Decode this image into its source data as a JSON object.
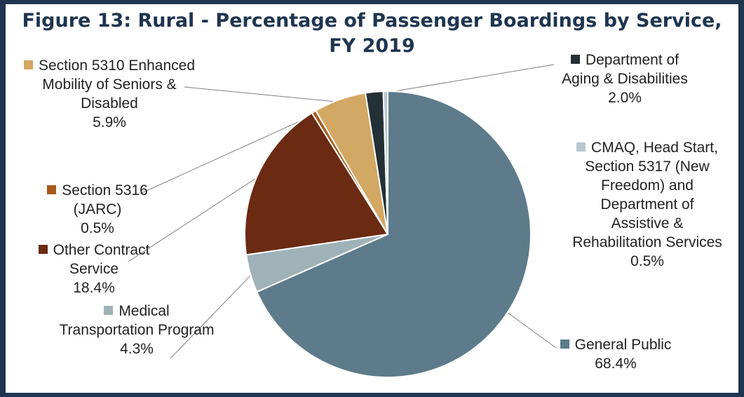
{
  "chart_data": {
    "type": "pie",
    "title": "Figure 13: Rural - Percentage of Passenger Boardings by Service, FY 2019",
    "start_angle_deg": 90,
    "direction": "clockwise",
    "slices": [
      {
        "label": "General Public",
        "value": 68.4,
        "value_label": "68.4%",
        "color": "#5d7b8a"
      },
      {
        "label": "Medical Transportation Program",
        "value": 4.3,
        "value_label": "4.3%",
        "color": "#9fb2b8"
      },
      {
        "label": "Other Contract Service",
        "value": 18.4,
        "value_label": "18.4%",
        "color": "#6b2a12"
      },
      {
        "label": "Section 5316 (JARC)",
        "value": 0.5,
        "value_label": "0.5%",
        "color": "#a75a1c"
      },
      {
        "label": "Section 5310 Enhanced Mobility of Seniors & Disabled",
        "value": 5.9,
        "value_label": "5.9%",
        "color": "#d3a764"
      },
      {
        "label": "Department of Aging & Disabilities",
        "value": 2.0,
        "value_label": "2.0%",
        "color": "#233036"
      },
      {
        "label": "CMAQ, Head Start, Section 5317 (New Freedom) and Department of Assistive & Rehabilitation Services",
        "value": 0.5,
        "value_label": "0.5%",
        "color": "#b9c8d1"
      }
    ]
  }
}
